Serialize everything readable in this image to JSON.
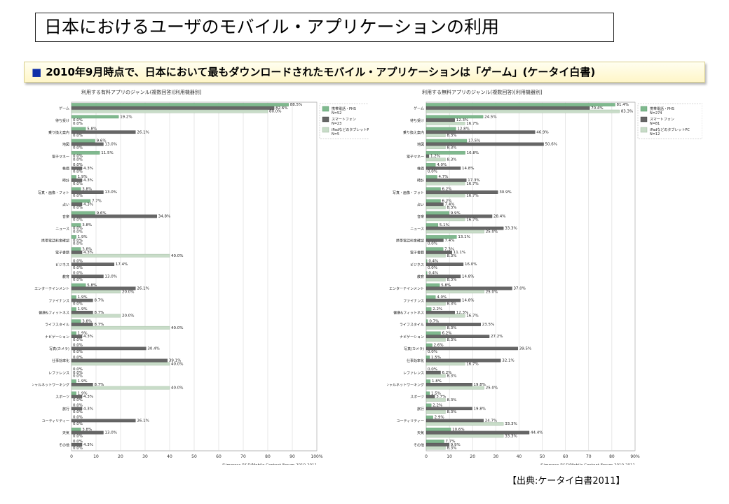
{
  "slide": {
    "title": "日本におけるユーザのモバイル・アプリケーションの利用",
    "subtitle": "2010年9月時点で、日本において最もダウンロードされたモバイル・アプリケーションは「ゲーム」(ケータイ白書)",
    "source": "【出典:ケータイ白書2011】"
  },
  "colors": {
    "phs": "#7fb98e",
    "smartphone": "#666666",
    "tablet": "#c8dcc8",
    "bullet": "#1030a8"
  },
  "chart_data": [
    {
      "type": "bar",
      "orientation": "horizontal",
      "title": "利用する有料アプリのジャンル(複数回答)[利用機器別]",
      "credit": "©impress R&D/Mobile Content Forum,2010-2011",
      "xlim": [
        0,
        100
      ],
      "xticks": [
        0,
        10,
        20,
        30,
        40,
        50,
        60,
        70,
        80,
        90,
        100
      ],
      "xtick_suffix": "%",
      "legend_position": "top-right",
      "categories": [
        "ゲーム",
        "待ち受け",
        "乗り換え案内",
        "地図",
        "電子マネー",
        "株価",
        "時計",
        "写真・画像・フォト",
        "占い",
        "音楽",
        "ニュース",
        "携帯電話料金確認",
        "電子書籍",
        "ビジネス",
        "教育",
        "エンターテインメント",
        "ファイナンス",
        "健康&フィットネス",
        "ライフスタイル",
        "ナビゲーション",
        "写真(カメラ)",
        "仕事効率化",
        "レファレンス",
        "ソーシャルネットワーキング",
        "スポーツ",
        "旅行",
        "ユーティリティー",
        "天気",
        "その他"
      ],
      "series": [
        {
          "name": "携帯電話・PHS",
          "n": "N=52",
          "values": [
            88.5,
            19.2,
            5.8,
            9.6,
            11.5,
            0.0,
            1.9,
            3.8,
            7.7,
            9.6,
            3.8,
            1.9,
            3.8,
            0.0,
            0.0,
            5.8,
            1.9,
            1.9,
            3.8,
            1.9,
            0.0,
            0.0,
            0.0,
            1.9,
            1.9,
            0.0,
            0.0,
            3.8,
            0.0
          ]
        },
        {
          "name": "スマートフォン",
          "n": "N=23",
          "values": [
            82.6,
            0.0,
            26.1,
            13.0,
            0.0,
            4.3,
            4.3,
            13.0,
            4.3,
            34.8,
            0.0,
            0.0,
            4.3,
            17.4,
            13.0,
            26.1,
            8.7,
            8.7,
            8.7,
            4.3,
            30.4,
            39.1,
            0.0,
            8.7,
            4.3,
            4.3,
            26.1,
            13.0,
            4.3
          ]
        },
        {
          "name": "iPadなどのタブレットPC",
          "n": "N=5",
          "values": [
            80.0,
            0.0,
            0.0,
            0.0,
            0.0,
            0.0,
            0.0,
            0.0,
            0.0,
            0.0,
            0.0,
            0.0,
            40.0,
            0.0,
            0.0,
            20.0,
            0.0,
            20.0,
            40.0,
            0.0,
            0.0,
            40.0,
            0.0,
            40.0,
            0.0,
            0.0,
            0.0,
            0.0,
            0.0
          ]
        }
      ]
    },
    {
      "type": "bar",
      "orientation": "horizontal",
      "title": "利用する無料アプリのジャンル(複数回答)[利用機器別]",
      "credit": "©impress R&D/Mobile Content Forum,2010-2011",
      "xlim": [
        0,
        90
      ],
      "xticks": [
        0,
        10,
        20,
        30,
        40,
        50,
        60,
        70,
        80,
        90
      ],
      "xtick_suffix": "%",
      "legend_position": "top-right",
      "categories": [
        "ゲーム",
        "待ち受け",
        "乗り換え案内",
        "地図",
        "電子マネー",
        "株価",
        "時計",
        "写真・画像・フォト",
        "占い",
        "音楽",
        "ニュース",
        "携帯電話料金確認",
        "電子書籍",
        "ビジネス",
        "教育",
        "エンターテインメント",
        "ファイナンス",
        "健康&フィットネス",
        "ライフスタイル",
        "ナビゲーション",
        "写真(カメラ)",
        "仕事効率化",
        "レファレンス",
        "ソーシャルネットワーキング",
        "スポーツ",
        "旅行",
        "ユーティリティー",
        "天気",
        "その他"
      ],
      "series": [
        {
          "name": "携帯電話・PHS",
          "n": "N=274",
          "values": [
            81.4,
            24.5,
            12.8,
            17.5,
            16.8,
            4.0,
            4.7,
            6.2,
            6.2,
            9.9,
            5.1,
            13.1,
            7.3,
            0.4,
            0.4,
            5.8,
            4.0,
            2.2,
            0.7,
            6.2,
            2.6,
            1.5,
            0.0,
            1.8,
            1.5,
            2.2,
            2.9,
            10.6,
            7.7
          ]
        },
        {
          "name": "スマートフォン",
          "n": "N=81",
          "values": [
            70.4,
            12.3,
            46.9,
            50.6,
            1.2,
            14.8,
            17.3,
            30.9,
            7.4,
            28.4,
            33.3,
            7.4,
            11.1,
            16.0,
            14.8,
            37.0,
            14.8,
            12.3,
            23.5,
            27.2,
            39.5,
            32.1,
            6.2,
            19.8,
            3.7,
            19.8,
            24.7,
            44.4,
            9.9
          ]
        },
        {
          "name": "iPadなどのタブレットPC",
          "n": "N=12",
          "values": [
            83.3,
            16.7,
            8.3,
            8.3,
            8.3,
            0.0,
            16.7,
            16.7,
            8.3,
            16.7,
            25.0,
            0.0,
            8.3,
            0.0,
            8.3,
            25.0,
            8.3,
            16.7,
            8.3,
            8.3,
            0.0,
            16.7,
            8.3,
            25.0,
            8.3,
            8.3,
            33.3,
            33.3,
            8.3
          ]
        }
      ]
    }
  ]
}
